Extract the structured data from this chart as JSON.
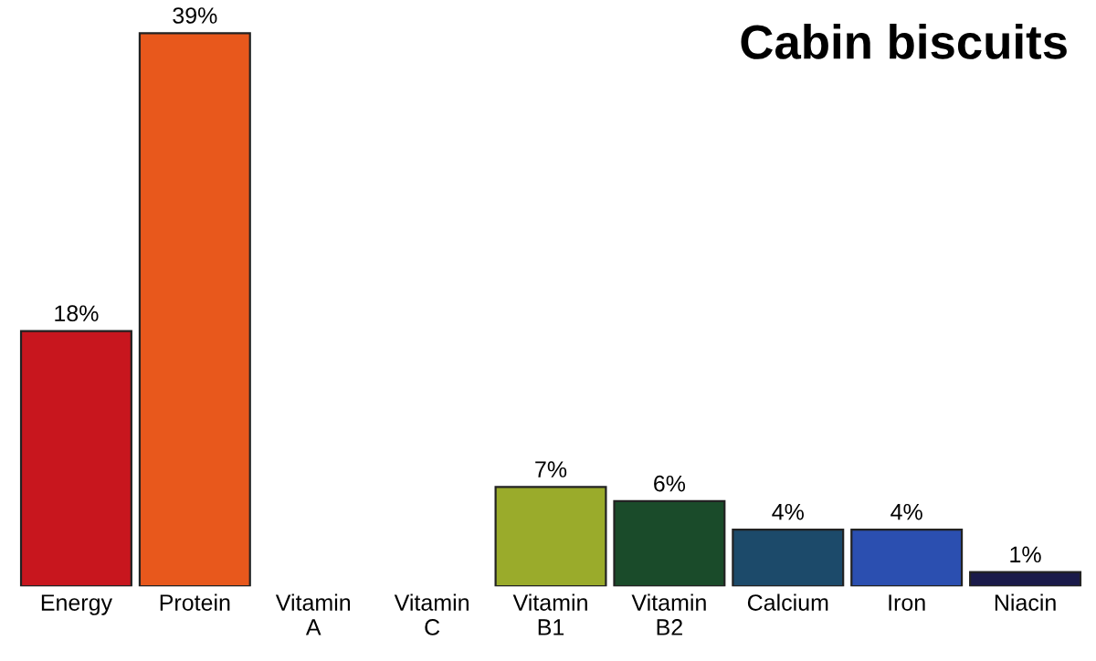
{
  "chart_data": {
    "type": "bar",
    "title": "Cabin biscuits",
    "categories": [
      "Energy",
      "Protein",
      "Vitamin\nA",
      "Vitamin\nC",
      "Vitamin\nB1",
      "Vitamin\nB2",
      "Calcium",
      "Iron",
      "Niacin"
    ],
    "values": [
      18,
      39,
      null,
      null,
      7,
      6,
      4,
      4,
      1
    ],
    "value_labels": [
      "18%",
      "39%",
      null,
      null,
      "7%",
      "6%",
      "4%",
      "4%",
      "1%"
    ],
    "colors": [
      "#c8161e",
      "#e8581c",
      null,
      null,
      "#9aab2b",
      "#1a4b2a",
      "#1c4a6a",
      "#2b4fb0",
      "#1a1a4a"
    ],
    "grid": false,
    "legend": false
  }
}
